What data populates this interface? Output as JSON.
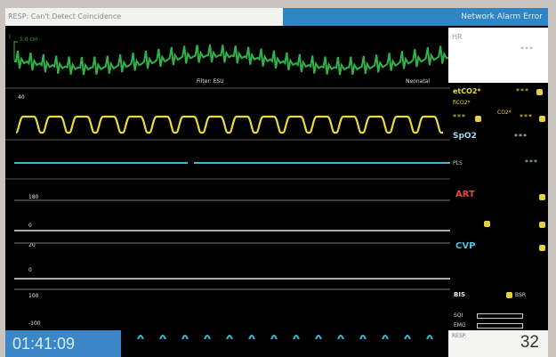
{
  "alarm": {
    "technical": "RESP: Can't Detect Coincidence",
    "network": "Network Alarm Error"
  },
  "ecg": {
    "lead": "I",
    "gain": "1.0 cm",
    "filter": "Filter: ESU",
    "mode": "Neonatal"
  },
  "hr": {
    "label": "HR",
    "value": "***"
  },
  "etco2": {
    "label": "etCO2*",
    "value": "***",
    "sub_label": "fiCO2*",
    "sub_value": "***",
    "co2_label": "CO2*",
    "co2_value": "***",
    "scale_label": "40"
  },
  "spo2": {
    "label": "SpO2",
    "value": "***",
    "pi_label": "PLS",
    "pi_value": "***"
  },
  "art": {
    "label": "ART",
    "scale_top": "180",
    "scale_bottom": "0"
  },
  "cvp": {
    "label": "CVP",
    "scale_top": "20",
    "scale_bottom": "0"
  },
  "bis": {
    "label": "BIS",
    "scale_top": "100",
    "scale_bottom": "-100",
    "sqi_label": "BSR"
  },
  "bars": {
    "sqi": "SQI",
    "emg": "EMG"
  },
  "clock": "01:41:09",
  "resp": {
    "label": "RESP",
    "value": "32"
  },
  "colors": {
    "ecg": "#2fb24a",
    "co2": "#e8dc3c",
    "spo2": "#35bcd6",
    "art": "#e34a3a",
    "cvp": "#4fc3de",
    "resp": "#39b8d8",
    "alarm_blue": "#2f86c4"
  }
}
